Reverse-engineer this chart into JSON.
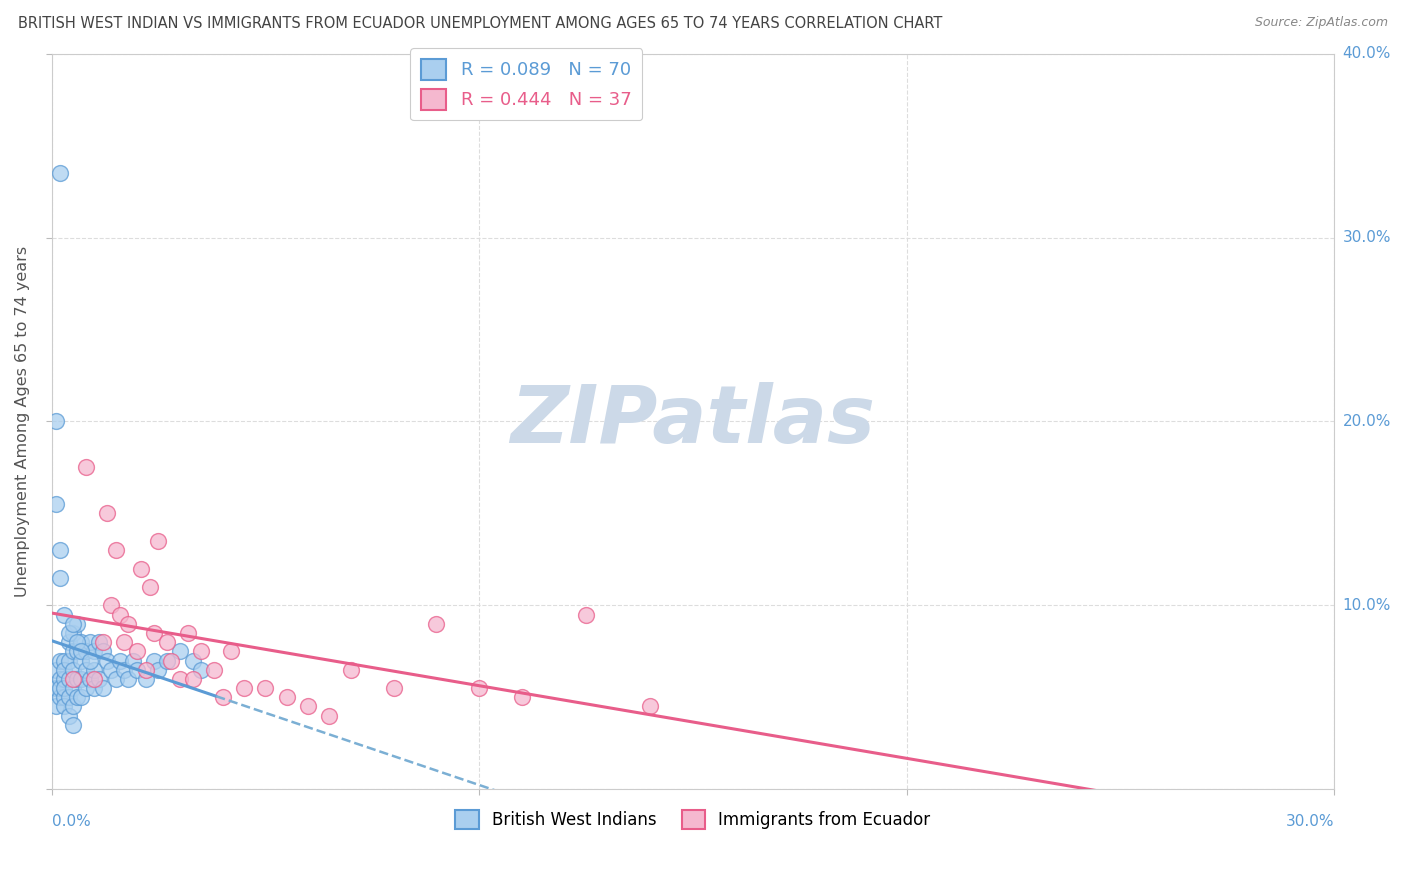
{
  "title": "BRITISH WEST INDIAN VS IMMIGRANTS FROM ECUADOR UNEMPLOYMENT AMONG AGES 65 TO 74 YEARS CORRELATION CHART",
  "source": "Source: ZipAtlas.com",
  "ylabel": "Unemployment Among Ages 65 to 74 years",
  "legend_1_label": "R = 0.089   N = 70",
  "legend_2_label": "R = 0.444   N = 37",
  "line_1_color": "#5b9bd5",
  "line_2_color": "#e85d8a",
  "scatter_1_color": "#aacfef",
  "scatter_2_color": "#f5b8cf",
  "scatter_1_edge": "#5b9bd5",
  "scatter_2_edge": "#e85d8a",
  "dashed_line_color": "#7bafd4",
  "watermark_text": "ZIPatlas",
  "watermark_color": "#ccd9e8",
  "background_color": "#ffffff",
  "grid_color": "#dddddd",
  "axis_label_color": "#5b9bd5",
  "title_color": "#444444",
  "source_color": "#888888",
  "xlim": [
    0.0,
    0.3
  ],
  "ylim": [
    0.0,
    0.4
  ],
  "x_ticks": [
    0.0,
    0.1,
    0.2,
    0.3
  ],
  "y_ticks": [
    0.0,
    0.1,
    0.2,
    0.3,
    0.4
  ],
  "scatter1_x": [
    0.001,
    0.001,
    0.001,
    0.002,
    0.002,
    0.002,
    0.002,
    0.002,
    0.003,
    0.003,
    0.003,
    0.003,
    0.003,
    0.003,
    0.004,
    0.004,
    0.004,
    0.004,
    0.004,
    0.005,
    0.005,
    0.005,
    0.005,
    0.005,
    0.005,
    0.006,
    0.006,
    0.006,
    0.006,
    0.007,
    0.007,
    0.007,
    0.007,
    0.008,
    0.008,
    0.008,
    0.009,
    0.009,
    0.01,
    0.01,
    0.01,
    0.011,
    0.011,
    0.012,
    0.012,
    0.013,
    0.014,
    0.015,
    0.016,
    0.017,
    0.018,
    0.019,
    0.02,
    0.022,
    0.024,
    0.025,
    0.027,
    0.03,
    0.033,
    0.035,
    0.001,
    0.001,
    0.002,
    0.002,
    0.003,
    0.004,
    0.005,
    0.006,
    0.007,
    0.009
  ],
  "scatter1_y": [
    0.055,
    0.065,
    0.045,
    0.07,
    0.06,
    0.05,
    0.055,
    0.335,
    0.07,
    0.06,
    0.05,
    0.065,
    0.055,
    0.045,
    0.08,
    0.07,
    0.06,
    0.05,
    0.04,
    0.085,
    0.075,
    0.065,
    0.055,
    0.045,
    0.035,
    0.09,
    0.075,
    0.06,
    0.05,
    0.08,
    0.07,
    0.06,
    0.05,
    0.075,
    0.065,
    0.055,
    0.08,
    0.06,
    0.075,
    0.065,
    0.055,
    0.08,
    0.06,
    0.075,
    0.055,
    0.07,
    0.065,
    0.06,
    0.07,
    0.065,
    0.06,
    0.07,
    0.065,
    0.06,
    0.07,
    0.065,
    0.07,
    0.075,
    0.07,
    0.065,
    0.2,
    0.155,
    0.13,
    0.115,
    0.095,
    0.085,
    0.09,
    0.08,
    0.075,
    0.07
  ],
  "scatter2_x": [
    0.005,
    0.008,
    0.01,
    0.012,
    0.013,
    0.014,
    0.015,
    0.016,
    0.017,
    0.018,
    0.02,
    0.021,
    0.022,
    0.023,
    0.024,
    0.025,
    0.027,
    0.028,
    0.03,
    0.032,
    0.033,
    0.035,
    0.038,
    0.04,
    0.042,
    0.045,
    0.05,
    0.055,
    0.06,
    0.065,
    0.07,
    0.08,
    0.09,
    0.1,
    0.11,
    0.125,
    0.14
  ],
  "scatter2_y": [
    0.06,
    0.175,
    0.06,
    0.08,
    0.15,
    0.1,
    0.13,
    0.095,
    0.08,
    0.09,
    0.075,
    0.12,
    0.065,
    0.11,
    0.085,
    0.135,
    0.08,
    0.07,
    0.06,
    0.085,
    0.06,
    0.075,
    0.065,
    0.05,
    0.075,
    0.055,
    0.055,
    0.05,
    0.045,
    0.04,
    0.065,
    0.055,
    0.09,
    0.055,
    0.05,
    0.095,
    0.045
  ]
}
